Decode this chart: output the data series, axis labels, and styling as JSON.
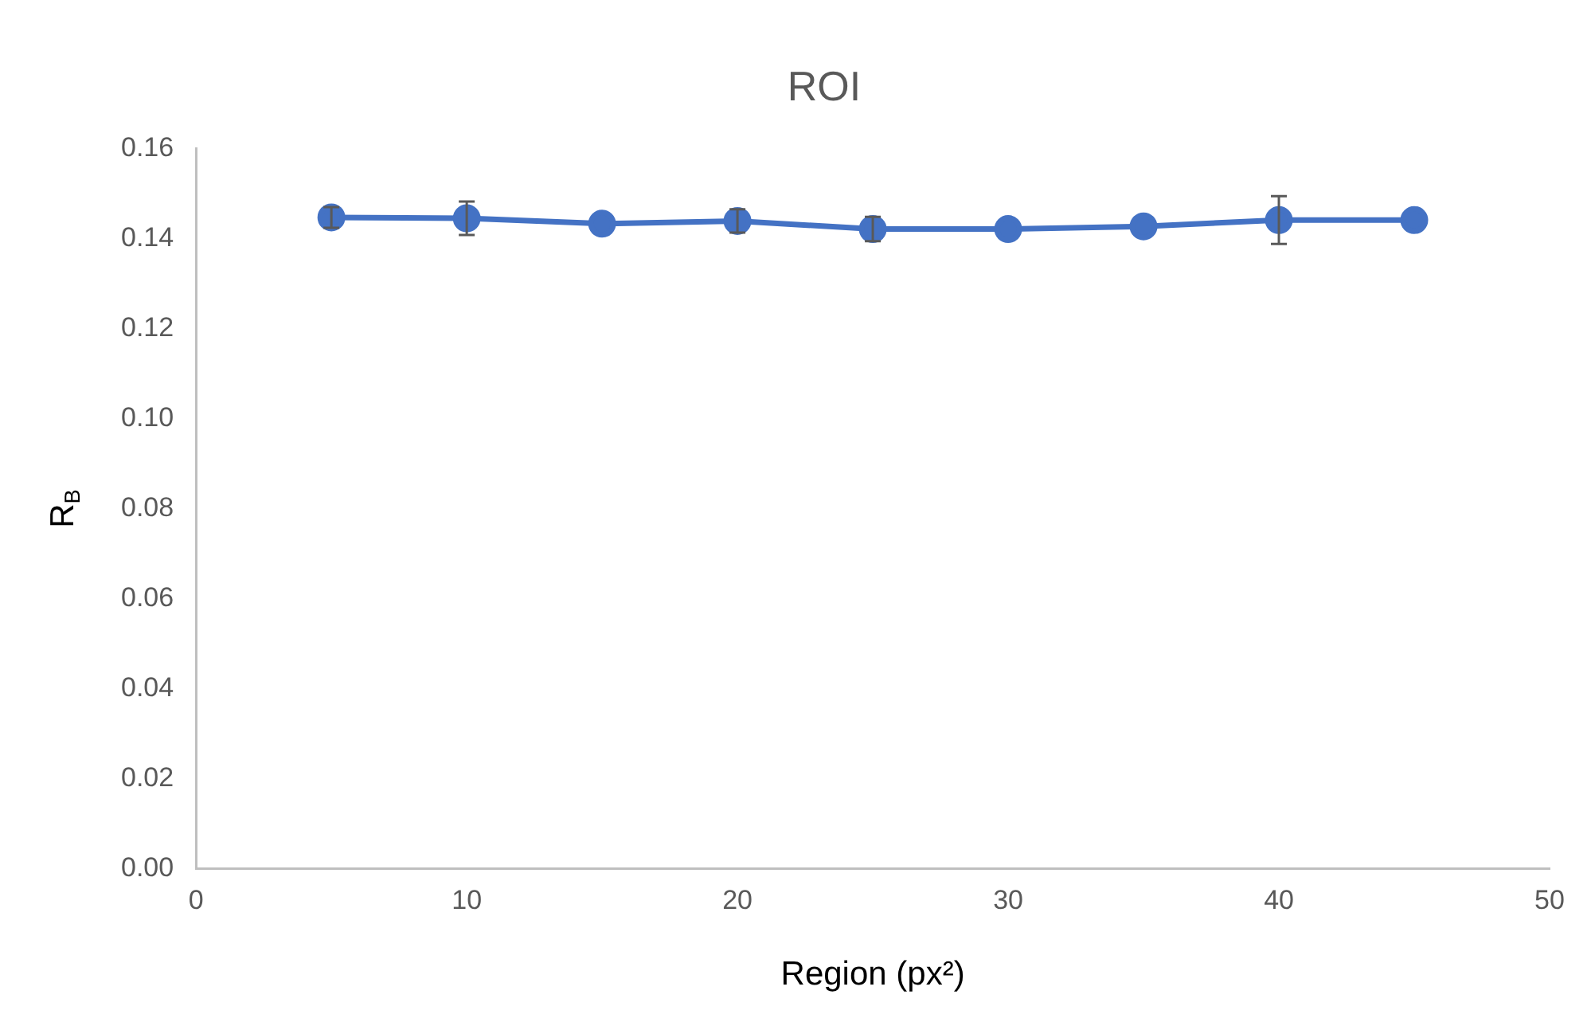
{
  "chart_data": {
    "type": "line",
    "title": "ROI",
    "xlabel": "Region (px²)",
    "ylabel": "R$_{B}$",
    "x": [
      5,
      10,
      15,
      20,
      25,
      30,
      35,
      40,
      45
    ],
    "series": [
      {
        "color": "#4472c4",
        "values": [
          0.1447,
          0.1445,
          0.1433,
          0.1439,
          0.1421,
          0.1421,
          0.1427,
          0.1441,
          0.1441
        ],
        "errors": [
          0.0023,
          0.0037,
          null,
          0.0026,
          0.0027,
          null,
          null,
          0.0053,
          null
        ]
      }
    ],
    "xlim": [
      0,
      50
    ],
    "xticks": [
      0,
      10,
      20,
      30,
      40,
      50
    ],
    "ylim": [
      0,
      0.16
    ],
    "yticks": [
      {
        "value": 0,
        "label": "0.00"
      },
      {
        "value": 0.02,
        "label": "0.02"
      },
      {
        "value": 0.04,
        "label": "0.04"
      },
      {
        "value": 0.06,
        "label": "0.06"
      },
      {
        "value": 0.08,
        "label": "0.08"
      },
      {
        "value": 0.1,
        "label": "0.10"
      },
      {
        "value": 0.12,
        "label": "0.12"
      },
      {
        "value": 0.14,
        "label": "0.14"
      },
      {
        "value": 0.16,
        "label": "0.16"
      }
    ],
    "grid": false,
    "legend": false,
    "marker": "circle",
    "line_style": "solid"
  }
}
